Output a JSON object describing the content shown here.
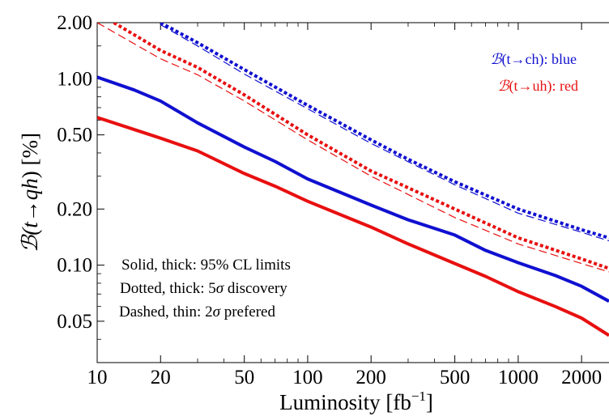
{
  "chart_data": {
    "type": "line",
    "xlabel": "Luminosity [fb",
    "xlabel_sup": "−1",
    "xlabel_close": "]",
    "ylabel_prefix": "ℬ(",
    "ylabel_math": "t→qh",
    "ylabel_suffix": ") [%]",
    "x_scale": "log",
    "y_scale": "log",
    "xlim": [
      10,
      2700
    ],
    "ylim": [
      0.03,
      2.0
    ],
    "x_ticks": [
      10,
      20,
      50,
      100,
      200,
      500,
      1000,
      2000
    ],
    "x_tick_labels": [
      "10",
      "20",
      "50",
      "100",
      "200",
      "500",
      "1000",
      "2000"
    ],
    "y_ticks": [
      0.05,
      0.1,
      0.2,
      0.5,
      1.0,
      2.0
    ],
    "y_tick_labels": [
      "0.05",
      "0.10",
      "0.20",
      "0.50",
      "1.00",
      "2.00"
    ],
    "legend": [
      {
        "prefix": "ℬ",
        "text": "(t→ch): blue",
        "color": "#1010d0"
      },
      {
        "prefix": "ℬ",
        "text": "(t→uh): red",
        "color": "#e81010"
      }
    ],
    "notes": [
      {
        "text": "Solid, thick: 95% CL limits"
      },
      {
        "text": "Dotted, thick: 5",
        "sigma": "σ",
        "after": " discovery"
      },
      {
        "text": "Dashed, thin: 2",
        "sigma": "σ",
        "after": " prefered"
      }
    ],
    "series": [
      {
        "color": "#1010d0",
        "style": "solid",
        "x": [
          10,
          15,
          20,
          30,
          50,
          70,
          100,
          200,
          300,
          500,
          700,
          1000,
          1500,
          2000,
          2700
        ],
        "y": [
          1.02,
          0.87,
          0.76,
          0.58,
          0.43,
          0.36,
          0.29,
          0.21,
          0.175,
          0.145,
          0.12,
          0.103,
          0.088,
          0.077,
          0.064
        ]
      },
      {
        "color": "#e81010",
        "style": "solid",
        "x": [
          10,
          20,
          30,
          50,
          70,
          100,
          200,
          300,
          500,
          700,
          1000,
          1500,
          2000,
          2700
        ],
        "y": [
          0.62,
          0.48,
          0.41,
          0.31,
          0.265,
          0.22,
          0.16,
          0.13,
          0.102,
          0.087,
          0.072,
          0.06,
          0.052,
          0.042
        ]
      },
      {
        "color": "#1010d0",
        "style": "dotted",
        "x": [
          20,
          30,
          50,
          100,
          200,
          300,
          500,
          1000,
          2000,
          2700
        ],
        "y": [
          2.0,
          1.56,
          1.12,
          0.72,
          0.47,
          0.37,
          0.28,
          0.2,
          0.155,
          0.14
        ]
      },
      {
        "color": "#1010d0",
        "style": "dashed",
        "x": [
          20,
          30,
          50,
          100,
          200,
          500,
          1000,
          2000,
          2700
        ],
        "y": [
          1.95,
          1.5,
          1.06,
          0.69,
          0.45,
          0.27,
          0.19,
          0.15,
          0.135
        ]
      },
      {
        "color": "#e81010",
        "style": "dotted",
        "x": [
          12,
          20,
          30,
          50,
          100,
          200,
          300,
          500,
          1000,
          2000,
          2700
        ],
        "y": [
          2.0,
          1.42,
          1.15,
          0.82,
          0.5,
          0.32,
          0.26,
          0.2,
          0.14,
          0.108,
          0.096
        ]
      },
      {
        "color": "#e81010",
        "style": "dashed",
        "x": [
          10,
          20,
          30,
          50,
          100,
          200,
          500,
          1000,
          2000,
          2700
        ],
        "y": [
          2.0,
          1.28,
          1.05,
          0.76,
          0.47,
          0.3,
          0.18,
          0.13,
          0.102,
          0.092
        ]
      }
    ]
  }
}
